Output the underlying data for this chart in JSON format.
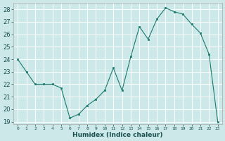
{
  "x": [
    0,
    1,
    2,
    3,
    4,
    5,
    6,
    7,
    8,
    9,
    10,
    11,
    12,
    13,
    14,
    15,
    16,
    17,
    18,
    19,
    20,
    21,
    22,
    23
  ],
  "y": [
    24,
    23,
    22,
    22,
    22,
    21.7,
    19.3,
    19.6,
    20.3,
    20.8,
    21.5,
    23.3,
    21.5,
    24.2,
    26.6,
    25.6,
    27.2,
    28.1,
    27.8,
    27.6,
    26.8,
    26.1,
    24.4,
    19
  ],
  "title": "",
  "xlabel": "Humidex (Indice chaleur)",
  "line_color": "#1a7a6e",
  "marker_color": "#1a7a6e",
  "bg_color": "#cce8e8",
  "grid_color": "#ffffff",
  "ylim_min": 18.8,
  "ylim_max": 28.5,
  "yticks": [
    19,
    20,
    21,
    22,
    23,
    24,
    25,
    26,
    27,
    28
  ],
  "xticks": [
    0,
    1,
    2,
    3,
    4,
    5,
    6,
    7,
    8,
    9,
    10,
    11,
    12,
    13,
    14,
    15,
    16,
    17,
    18,
    19,
    20,
    21,
    22,
    23
  ],
  "xtick_labels": [
    "0",
    "1",
    "2",
    "3",
    "4",
    "5",
    "6",
    "7",
    "8",
    "9",
    "10",
    "11",
    "12",
    "13",
    "14",
    "15",
    "16",
    "17",
    "18",
    "19",
    "20",
    "21",
    "22",
    "23"
  ]
}
